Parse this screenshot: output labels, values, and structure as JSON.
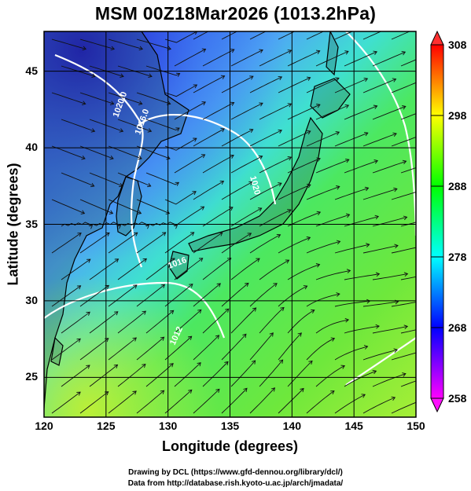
{
  "title": "MSM 00Z18Mar2026 (1013.2hPa)",
  "x_axis": {
    "label": "Longitude (degrees)",
    "ticks": [
      "120",
      "125",
      "130",
      "135",
      "140",
      "145",
      "150"
    ],
    "range": [
      120,
      150
    ]
  },
  "y_axis": {
    "label": "Latitude  (degrees)",
    "ticks": [
      "25",
      "30",
      "35",
      "40",
      "45"
    ],
    "range": [
      22.4,
      47.6
    ]
  },
  "colorbar": {
    "ticks": [
      "258",
      "268",
      "278",
      "288",
      "298",
      "308"
    ],
    "range": [
      258,
      308
    ],
    "colors": [
      "#ff00ff",
      "#0000ff",
      "#00ffff",
      "#00ff00",
      "#ffff00",
      "#ff0000"
    ]
  },
  "contour_labels": [
    "1020.0",
    "1016.0",
    "1020",
    "1016",
    "1012"
  ],
  "credits": {
    "line1": "Drawing by DCL (https://www.gfd-dennou.org/library/dcl/)",
    "line2": "Data from http://database.rish.kyoto-u.ac.jp/arch/jmadata/"
  }
}
